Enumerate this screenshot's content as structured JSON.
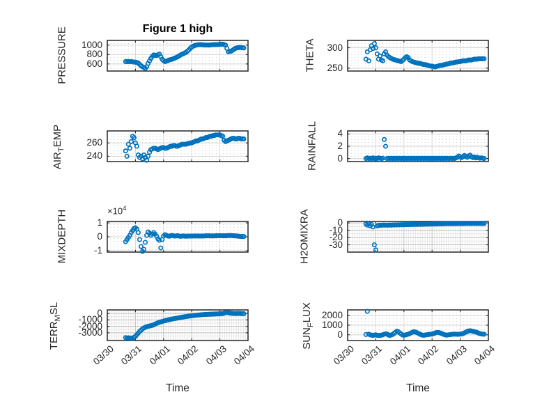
{
  "figure": {
    "title": "Figure 1 high",
    "marker_color": "#0072BD",
    "axis_color": "#262626",
    "background_color": "#ffffff",
    "grid_major_color": "#d6d6d6",
    "grid_minor_color": "#cccccc"
  },
  "chart_data": {
    "type": "scatter",
    "layout": "4x2 subplot grid, shared time axis",
    "xlabel": "Time",
    "x_tick_labels": [
      "03/30",
      "03/31",
      "04/01",
      "04/02",
      "04/03",
      "04/04"
    ],
    "x_range_days": [
      0,
      5
    ],
    "marker": "open-circle",
    "x_days": [
      0.65,
      0.7,
      0.75,
      0.8,
      0.85,
      0.9,
      0.95,
      1,
      1.05,
      1.1,
      1.15,
      1.2,
      1.25,
      1.3,
      1.35,
      1.4,
      1.45,
      1.5,
      1.55,
      1.6,
      1.65,
      1.7,
      1.75,
      1.8,
      1.85,
      1.9,
      1.95,
      2,
      2.05,
      2.1,
      2.15,
      2.2,
      2.25,
      2.3,
      2.35,
      2.4,
      2.45,
      2.5,
      2.55,
      2.6,
      2.65,
      2.7,
      2.75,
      2.8,
      2.85,
      2.9,
      2.95,
      3,
      3.05,
      3.1,
      3.15,
      3.2,
      3.25,
      3.3,
      3.35,
      3.4,
      3.45,
      3.5,
      3.55,
      3.6,
      3.65,
      3.7,
      3.75,
      3.8,
      3.85,
      3.9,
      3.95,
      4,
      4.05,
      4.1,
      4.15,
      4.2,
      4.25,
      4.3,
      4.35,
      4.4,
      4.45,
      4.5,
      4.55,
      4.6,
      4.65,
      4.7,
      4.75,
      4.8,
      4.85
    ],
    "subplots": [
      {
        "id": "pressure",
        "row": 0,
        "col": 0,
        "ylabel": "PRESSURE",
        "ylabel_parts": [
          {
            "text": "PRESSURE",
            "sub": false
          }
        ],
        "ylim": [
          450,
          1100
        ],
        "yticks": [
          600,
          800,
          1000
        ],
        "ytick_labels": [
          "600",
          "800",
          "1000"
        ],
        "dense_grid": false,
        "y": [
          650,
          648,
          652,
          647,
          650,
          645,
          640,
          638,
          630,
          620,
          590,
          560,
          540,
          525,
          505,
          540,
          610,
          665,
          720,
          760,
          790,
          785,
          778,
          795,
          810,
          755,
          700,
          670,
          650,
          660,
          670,
          685,
          692,
          700,
          712,
          725,
          738,
          752,
          770,
          790,
          805,
          818,
          832,
          848,
          872,
          900,
          930,
          960,
          975,
          990,
          998,
          1005,
          1008,
          1010,
          1008,
          1005,
          1002,
          1000,
          1002,
          1000,
          1003,
          1006,
          1008,
          1008,
          1010,
          1010,
          1012,
          1015,
          1018,
          1020,
          1010,
          1000,
          930,
          860,
          865,
          872,
          890,
          910,
          930,
          940,
          945,
          950,
          948,
          944,
          940
        ]
      },
      {
        "id": "theta",
        "row": 0,
        "col": 1,
        "ylabel": "THETA",
        "ylabel_parts": [
          {
            "text": "THETA",
            "sub": false
          }
        ],
        "ylim": [
          243,
          318
        ],
        "yticks": [
          250,
          300
        ],
        "ytick_labels": [
          "250",
          "300"
        ],
        "dense_grid": false,
        "y": [
          272,
          290,
          268,
          295,
          305,
          298,
          310,
          300,
          285,
          272,
          280,
          270,
          268,
          285,
          290,
          282,
          278,
          276,
          274,
          272,
          271,
          270,
          269,
          268,
          267,
          266,
          269,
          272,
          276,
          278,
          276,
          270,
          268,
          266,
          265,
          264,
          263,
          262,
          262,
          261,
          260,
          259,
          259,
          258,
          257,
          256,
          255,
          255,
          254,
          253,
          254,
          255,
          256,
          257,
          257,
          258,
          259,
          260,
          260,
          261,
          262,
          263,
          263,
          264,
          265,
          265,
          266,
          266,
          267,
          268,
          268,
          268,
          269,
          270,
          270,
          270,
          271,
          272,
          272,
          272,
          273,
          273,
          273,
          273,
          273
        ]
      },
      {
        "id": "airtemp",
        "row": 1,
        "col": 0,
        "ylabel": "AIR_TEMP",
        "ylabel_parts": [
          {
            "text": "AIR",
            "sub": false
          },
          {
            "text": "T",
            "sub": true
          },
          {
            "text": "EMP",
            "sub": false
          }
        ],
        "ylim": [
          232,
          278
        ],
        "yticks": [
          240,
          260
        ],
        "ytick_labels": [
          "240",
          "260"
        ],
        "dense_grid": false,
        "y": [
          248,
          240,
          258,
          252,
          262,
          270,
          268,
          260,
          255,
          242,
          238,
          240,
          236,
          242,
          238,
          234,
          240,
          246,
          250,
          251,
          252,
          252,
          251,
          250,
          251,
          252,
          253,
          253,
          252,
          252,
          253,
          254,
          255,
          255,
          256,
          256,
          255,
          255,
          256,
          257,
          258,
          258,
          258,
          258,
          259,
          259,
          260,
          260,
          261,
          262,
          263,
          263,
          264,
          265,
          266,
          266,
          267,
          268,
          268,
          269,
          270,
          270,
          271,
          271,
          272,
          272,
          272,
          272,
          271,
          270,
          264,
          262,
          263,
          264,
          265,
          266,
          267,
          267,
          266,
          266,
          267,
          267,
          266,
          266,
          266
        ]
      },
      {
        "id": "rainfall",
        "row": 1,
        "col": 1,
        "ylabel": "RAINFALL",
        "ylabel_parts": [
          {
            "text": "RAINFALL",
            "sub": false
          }
        ],
        "ylim": [
          -0.5,
          4.5
        ],
        "yticks": [
          0,
          2,
          4
        ],
        "ytick_labels": [
          "0",
          "2",
          "4"
        ],
        "dense_grid": false,
        "y": [
          0,
          0.1,
          0,
          0.05,
          0,
          0.1,
          0,
          0.05,
          0,
          0.1,
          0.05,
          0,
          0.05,
          3.1,
          2,
          0,
          0.05,
          0,
          0.05,
          0,
          0.05,
          0,
          0.05,
          0,
          0.05,
          0,
          0.05,
          0,
          0.05,
          0,
          0.05,
          0,
          0.05,
          0,
          0.05,
          0,
          0.05,
          0,
          0.05,
          0,
          0.05,
          0,
          0.05,
          0,
          0.05,
          0,
          0.05,
          0,
          0.05,
          0,
          0.05,
          0,
          0.05,
          0,
          0.05,
          0,
          0.05,
          0,
          0.05,
          0,
          0.05,
          0,
          0.05,
          0,
          0.1,
          0.2,
          0.4,
          0.3,
          0.15,
          0.3,
          0.5,
          0.35,
          0.2,
          0.4,
          0.55,
          0.3,
          0.15,
          0.25,
          0.1,
          0.2,
          0.1,
          0.05,
          0.1,
          0.05,
          0
        ]
      },
      {
        "id": "mixdepth",
        "row": 2,
        "col": 0,
        "ylabel": "MIXDEPTH",
        "ylabel_parts": [
          {
            "text": "MIXDEPTH",
            "sub": false
          }
        ],
        "ylim": [
          -11000,
          11000
        ],
        "yticks": [
          -10000,
          0,
          10000
        ],
        "ytick_labels": [
          "-1",
          "0",
          "1"
        ],
        "exponent": {
          "prefix": "×10",
          "power": "4"
        },
        "dense_grid": false,
        "y": [
          -3500,
          -2000,
          -500,
          1000,
          3000,
          4500,
          6000,
          6500,
          5500,
          3000,
          -2000,
          -7000,
          -10500,
          -9000,
          -4000,
          1000,
          3500,
          2500,
          1000,
          2000,
          3000,
          2000,
          500,
          -1500,
          -2500,
          -8000,
          -2000,
          500,
          1500,
          1000,
          600,
          400,
          700,
          1000,
          700,
          500,
          650,
          800,
          550,
          300,
          450,
          600,
          500,
          400,
          450,
          500,
          550,
          500,
          550,
          600,
          550,
          600,
          550,
          500,
          600,
          500,
          600,
          700,
          650,
          700,
          650,
          600,
          650,
          600,
          700,
          800,
          750,
          800,
          750,
          700,
          750,
          700,
          800,
          900,
          850,
          900,
          800,
          700,
          650,
          600,
          450,
          300,
          250,
          220,
          200
        ]
      },
      {
        "id": "h2omixra",
        "row": 2,
        "col": 1,
        "ylabel": "H2OMIXRA",
        "ylabel_parts": [
          {
            "text": "H2OMIXRA",
            "sub": false
          }
        ],
        "ylim": [
          -40,
          2
        ],
        "yticks": [
          -30,
          -20,
          -10,
          0
        ],
        "ytick_labels": [
          "-30",
          "-20",
          "-10",
          "0"
        ],
        "dense_grid": true,
        "y_minor_step": 5,
        "y": [
          -1.5,
          -3,
          -1.2,
          -4,
          -2.2,
          -5.5,
          -30,
          -37,
          -4,
          -3.5,
          -3,
          -3.3,
          -2.8,
          -3.1,
          -2.9,
          -3.2,
          -3,
          -2.8,
          -3.1,
          -2.7,
          -2.9,
          -2.6,
          -2.8,
          -2.5,
          -2.7,
          -2.4,
          -2.6,
          -2.3,
          -2.5,
          -2.2,
          -2.4,
          -2.1,
          -2.3,
          -2,
          -2.2,
          -1.9,
          -2.1,
          -2,
          -1.8,
          -2,
          -1.7,
          -1.9,
          -1.6,
          -1.8,
          -1.5,
          -1.7,
          -1.4,
          -1.6,
          -1.3,
          -1.5,
          -1.2,
          -1.4,
          -1.1,
          -1.3,
          -1,
          -1.2,
          -0.9,
          -1.1,
          -0.8,
          -1,
          -0.9,
          -1.1,
          -0.8,
          -1,
          -0.7,
          -0.9,
          -0.6,
          -0.8,
          -0.7,
          -0.9,
          -0.6,
          -0.8,
          -0.5,
          -0.7,
          -0.6,
          -0.8,
          -0.5,
          -0.7,
          -0.6,
          -0.8,
          -0.5,
          -0.7,
          -0.6,
          -0.8,
          -0.6
        ]
      },
      {
        "id": "terr",
        "row": 3,
        "col": 0,
        "ylabel": "TERR_MSL",
        "ylabel_parts": [
          {
            "text": "TERR",
            "sub": false
          },
          {
            "text": "M",
            "sub": true
          },
          {
            "text": "SL",
            "sub": false
          }
        ],
        "ylim": [
          -4200,
          550
        ],
        "yticks": [
          -3000,
          -2000,
          -1000,
          0
        ],
        "ytick_labels": [
          "-3000",
          "-2000",
          "-1000",
          "0"
        ],
        "dense_grid": true,
        "y_minor_step": 500,
        "y": [
          -3750,
          -3820,
          -3780,
          -3850,
          -3800,
          -3840,
          -3700,
          -3550,
          -3300,
          -3050,
          -2800,
          -2600,
          -2400,
          -2250,
          -2150,
          -2050,
          -2000,
          -1950,
          -1900,
          -1850,
          -1750,
          -1650,
          -1550,
          -1450,
          -1380,
          -1300,
          -1250,
          -1180,
          -1120,
          -1060,
          -1010,
          -960,
          -910,
          -870,
          -830,
          -790,
          -750,
          -710,
          -670,
          -630,
          -590,
          -550,
          -510,
          -480,
          -450,
          -420,
          -390,
          -360,
          -330,
          -300,
          -280,
          -260,
          -240,
          -220,
          -200,
          -180,
          -160,
          -150,
          -140,
          -130,
          -120,
          -110,
          -100,
          -90,
          -80,
          -70,
          -60,
          -50,
          -40,
          -20,
          40,
          120,
          150,
          120,
          60,
          20,
          0,
          -10,
          -20,
          -10,
          0,
          -10,
          -20,
          -30,
          -40
        ]
      },
      {
        "id": "sunflux",
        "row": 3,
        "col": 1,
        "ylabel": "SUN_FLUX",
        "ylabel_parts": [
          {
            "text": "SUN",
            "sub": false
          },
          {
            "text": "F",
            "sub": true
          },
          {
            "text": "LUX",
            "sub": false
          }
        ],
        "ylim": [
          -600,
          2600
        ],
        "yticks": [
          0,
          1000,
          2000
        ],
        "ytick_labels": [
          "0",
          "1000",
          "2000"
        ],
        "dense_grid": false,
        "y": [
          30,
          2450,
          60,
          0,
          -40,
          -60,
          -30,
          0,
          -50,
          -80,
          -60,
          -40,
          0,
          60,
          100,
          80,
          -30,
          -60,
          -20,
          40,
          150,
          260,
          380,
          320,
          200,
          90,
          -20,
          -50,
          -20,
          20,
          60,
          120,
          200,
          260,
          320,
          300,
          240,
          170,
          90,
          20,
          -30,
          -50,
          -30,
          0,
          20,
          40,
          60,
          80,
          120,
          180,
          230,
          255,
          230,
          180,
          120,
          60,
          0,
          -30,
          -20,
          0,
          20,
          40,
          60,
          70,
          60,
          50,
          60,
          70,
          90,
          130,
          200,
          280,
          350,
          400,
          420,
          400,
          360,
          330,
          300,
          250,
          180,
          120,
          90,
          70,
          60
        ]
      }
    ]
  }
}
